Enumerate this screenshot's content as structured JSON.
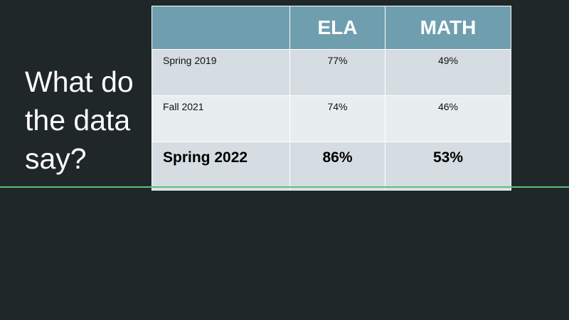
{
  "slide": {
    "title_lines": [
      "What do",
      "the data",
      "say?"
    ]
  },
  "table": {
    "headers": [
      "",
      "ELA",
      "MATH"
    ],
    "rows": [
      {
        "label": "Spring 2019",
        "ela": "77%",
        "math": "49%"
      },
      {
        "label": "Fall 2021",
        "ela": "74%",
        "math": "46%"
      },
      {
        "label": "Spring 2022",
        "ela": "86%",
        "math": "53%"
      }
    ]
  },
  "colors": {
    "background": "#202729",
    "header_fill": "#6f9fae",
    "row_fill_dark": "#d5dde2",
    "row_fill_light": "#e8eef0",
    "divider": "#5fbf80"
  }
}
